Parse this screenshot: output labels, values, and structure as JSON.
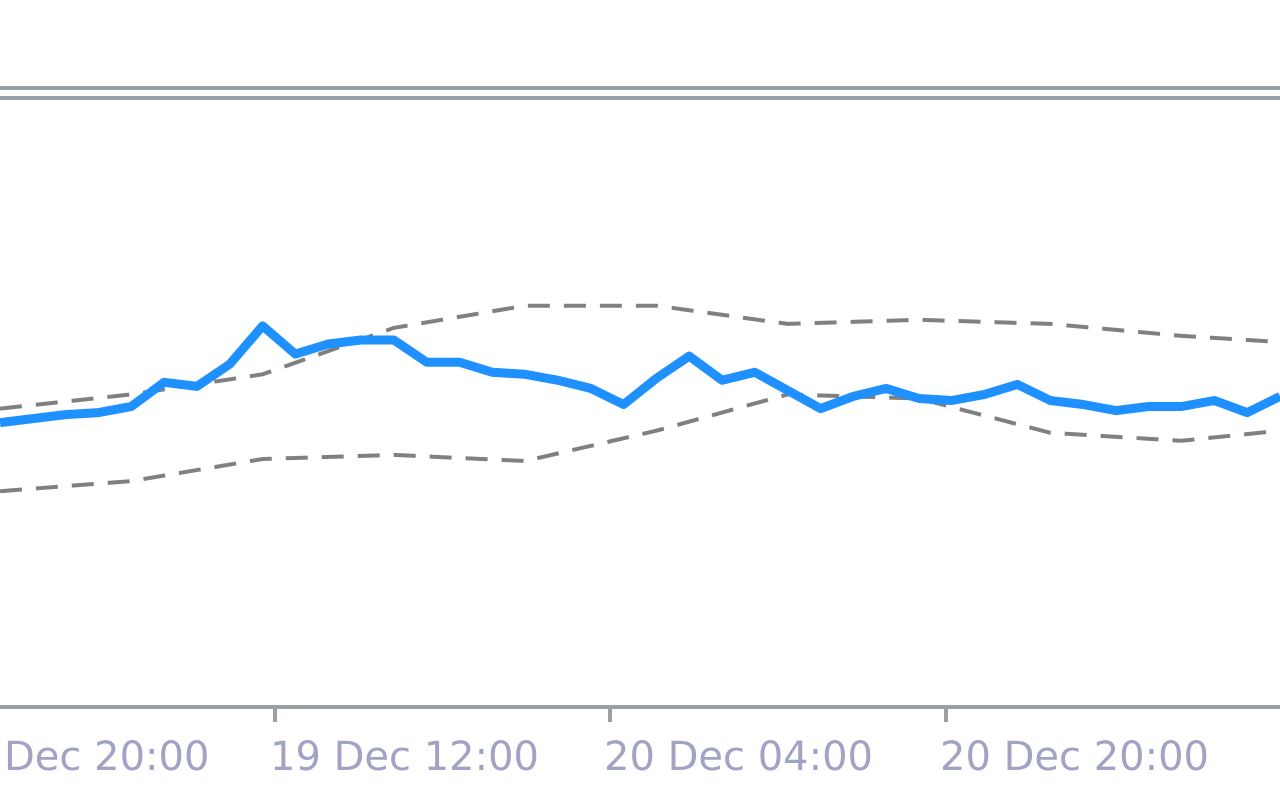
{
  "chart_data": {
    "type": "line",
    "x_ticks": [
      "Dec 20:00",
      "19 Dec 12:00",
      "20 Dec 04:00",
      "20 Dec 20:00"
    ],
    "series": [
      {
        "role": "main",
        "style": "solid",
        "color": "#1e90ff",
        "x": [
          0,
          10,
          20,
          30,
          40,
          50,
          60,
          70,
          80,
          90,
          100,
          110,
          120,
          130,
          140,
          150,
          160,
          170,
          180,
          190,
          200,
          210,
          220,
          230,
          240,
          250,
          260,
          270,
          280,
          290,
          300,
          310,
          320,
          330,
          340,
          350,
          360,
          370,
          380,
          390
        ],
        "y": [
          0.4,
          0.42,
          0.44,
          0.45,
          0.48,
          0.6,
          0.58,
          0.69,
          0.88,
          0.74,
          0.79,
          0.81,
          0.81,
          0.7,
          0.7,
          0.65,
          0.64,
          0.61,
          0.57,
          0.49,
          0.62,
          0.73,
          0.61,
          0.65,
          0.56,
          0.47,
          0.53,
          0.57,
          0.52,
          0.51,
          0.54,
          0.59,
          0.51,
          0.49,
          0.46,
          0.48,
          0.48,
          0.51,
          0.45,
          0.53
        ]
      },
      {
        "role": "upper-band",
        "style": "dashed",
        "color": "#808080",
        "x": [
          0,
          40,
          80,
          120,
          160,
          200,
          240,
          280,
          320,
          360,
          390
        ],
        "y": [
          0.47,
          0.54,
          0.64,
          0.87,
          0.98,
          0.98,
          0.89,
          0.91,
          0.89,
          0.83,
          0.8
        ]
      },
      {
        "role": "lower-band",
        "style": "dashed",
        "color": "#808080",
        "x": [
          0,
          40,
          80,
          120,
          160,
          200,
          240,
          280,
          320,
          360,
          390
        ],
        "y": [
          0.06,
          0.11,
          0.22,
          0.24,
          0.21,
          0.36,
          0.54,
          0.52,
          0.35,
          0.31,
          0.36
        ]
      }
    ],
    "ylim": [
      -1,
      2
    ],
    "grid": false
  }
}
